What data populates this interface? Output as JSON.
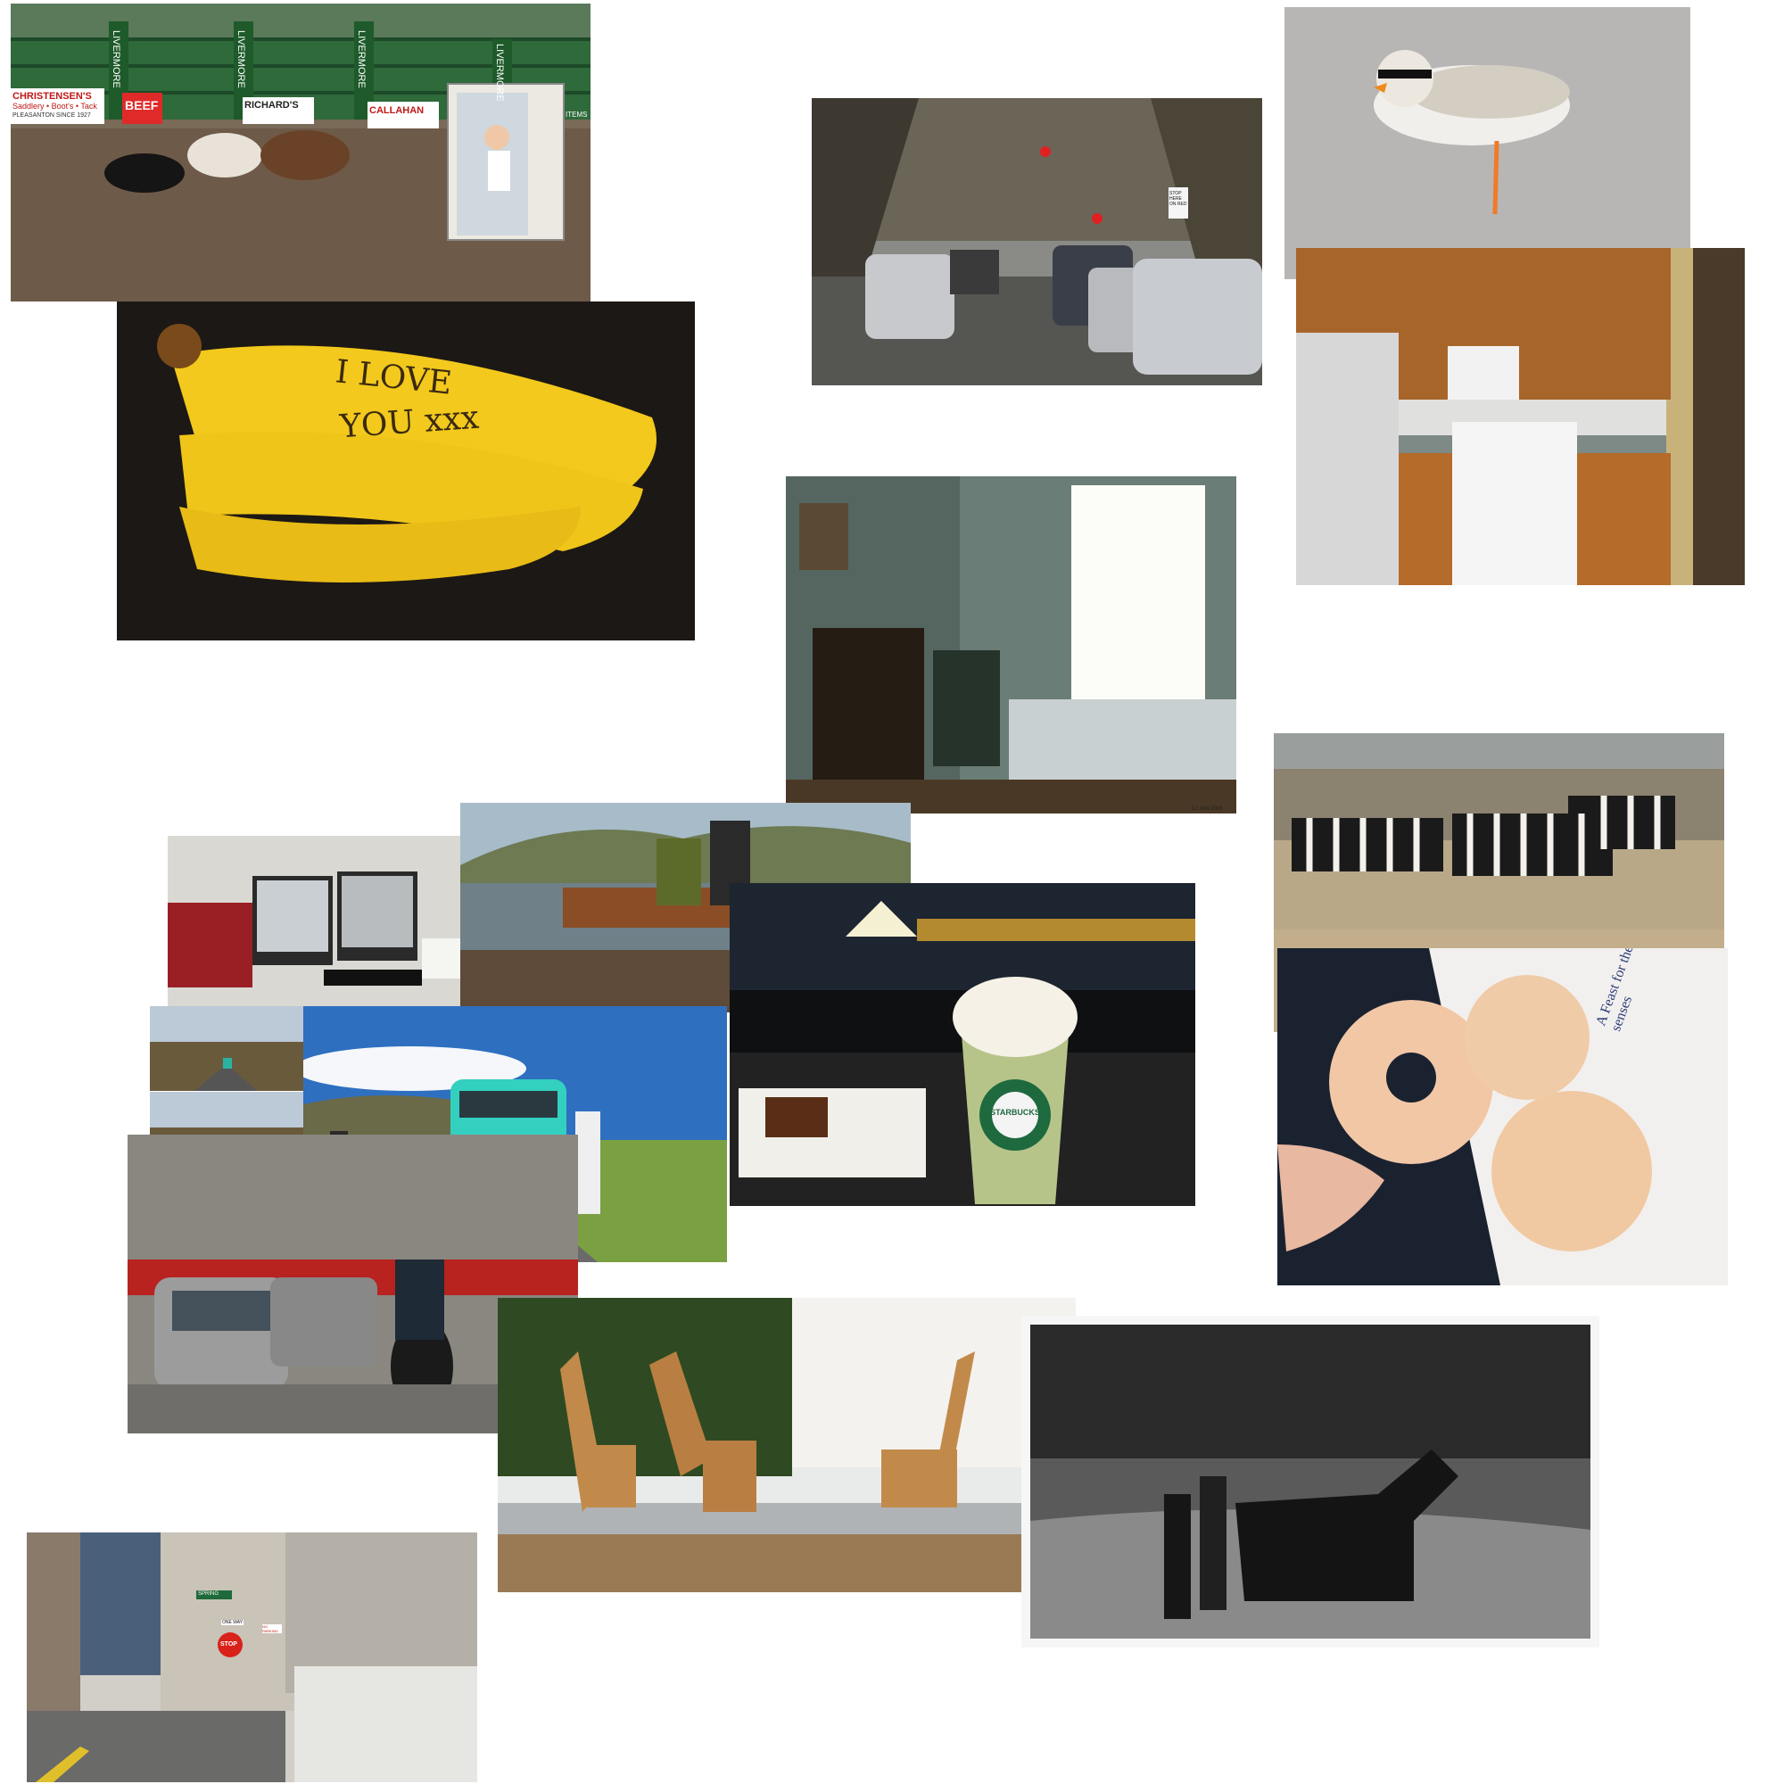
{
  "collage": {
    "rodeo": {
      "signs": [
        "LIVERMORE",
        "LIVERMORE",
        "LIVERMORE",
        "LIVERMORE"
      ],
      "banner_christensens": "CHRISTENSEN'S",
      "banner_saddlery": "Saddlery • Boot's • Tack",
      "banner_pleasanton": "PLEASANTON SINCE 1927",
      "banner_beef": "BEEF",
      "banner_richards": "RICHARD'S",
      "banner_callahan": "CALLAHAN",
      "banner_items": "ITEMS"
    },
    "banana": {
      "line1": "I LOVE",
      "line2": "YOU xxx"
    },
    "traffic": {
      "sign": "STOP HERE ON RED"
    },
    "bedroom": {
      "date": "12 JAN 2006"
    },
    "coffee": {
      "cup_brand": "STARBUCKS"
    },
    "donut": {
      "bag_text": "A Feast for the senses"
    },
    "street": {
      "street_sign": "SPRING",
      "one_way": "ONE WAY",
      "stop": "STOP",
      "no_parking": "NO PARKING"
    }
  }
}
